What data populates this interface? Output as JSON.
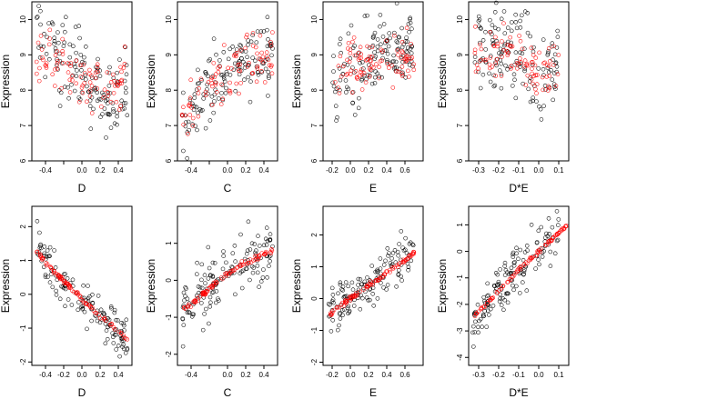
{
  "colors": {
    "observed": "#000000",
    "fitted": "#ff0000"
  },
  "chart_data": [
    {
      "type": "scatter",
      "xlabel": "D",
      "ylabel": "Expression",
      "xlim": [
        -0.55,
        0.55
      ],
      "ylim": [
        6,
        10.5
      ],
      "xticks": [
        -0.4,
        -0.2,
        0.0,
        0.2,
        0.4
      ],
      "xtick_labels": [
        "-0.4",
        "",
        "0.0",
        "0.2",
        "0.4"
      ],
      "yticks": [
        6,
        7,
        8,
        9,
        10
      ],
      "ytick_labels": [
        "6",
        "7",
        "8",
        "9",
        "10"
      ],
      "series": [
        {
          "values": [
            [
              -0.5,
              9.6
            ],
            [
              -0.45,
              9.4
            ],
            [
              -0.4,
              9.2
            ],
            [
              -0.35,
              9.1
            ],
            [
              -0.3,
              9.0
            ],
            [
              -0.2,
              8.8
            ],
            [
              -0.1,
              8.6
            ],
            [
              0.0,
              8.4
            ],
            [
              0.05,
              8.2
            ],
            [
              0.1,
              8.1
            ],
            [
              0.2,
              8.0
            ],
            [
              0.3,
              7.9
            ],
            [
              0.4,
              7.9
            ],
            [
              0.5,
              7.9
            ]
          ],
          "spread": 0.9
        },
        {
          "values": [
            [
              -0.5,
              9.1
            ],
            [
              -0.4,
              9.0
            ],
            [
              -0.3,
              8.8
            ],
            [
              -0.2,
              8.6
            ],
            [
              -0.1,
              8.5
            ],
            [
              0.0,
              8.3
            ],
            [
              0.1,
              8.2
            ],
            [
              0.2,
              8.2
            ],
            [
              0.3,
              8.2
            ],
            [
              0.4,
              8.3
            ],
            [
              0.5,
              8.5
            ]
          ],
          "spread": 0.6
        }
      ]
    },
    {
      "type": "scatter",
      "xlabel": "C",
      "ylabel": "Expression",
      "xlim": [
        -0.55,
        0.55
      ],
      "ylim": [
        6,
        10.5
      ],
      "xticks": [
        -0.4,
        -0.2,
        0.0,
        0.2,
        0.4
      ],
      "xtick_labels": [
        "-0.4",
        "",
        "0.0",
        "0.2",
        "0.4"
      ],
      "yticks": [
        6,
        7,
        8,
        9,
        10
      ],
      "ytick_labels": [
        "6",
        "7",
        "8",
        "9",
        "10"
      ],
      "series": [
        {
          "values": [
            [
              -0.5,
              7.0
            ],
            [
              -0.4,
              7.4
            ],
            [
              -0.3,
              7.8
            ],
            [
              -0.2,
              8.0
            ],
            [
              -0.1,
              8.2
            ],
            [
              0.0,
              8.5
            ],
            [
              0.1,
              8.7
            ],
            [
              0.2,
              8.9
            ],
            [
              0.3,
              9.0
            ],
            [
              0.4,
              9.1
            ],
            [
              0.5,
              9.2
            ]
          ],
          "spread": 0.8
        },
        {
          "values": [
            [
              -0.5,
              7.1
            ],
            [
              -0.4,
              7.5
            ],
            [
              -0.3,
              7.8
            ],
            [
              -0.2,
              8.1
            ],
            [
              -0.1,
              8.3
            ],
            [
              0.0,
              8.5
            ],
            [
              0.1,
              8.7
            ],
            [
              0.2,
              8.8
            ],
            [
              0.3,
              8.9
            ],
            [
              0.4,
              9.0
            ],
            [
              0.5,
              9.0
            ]
          ],
          "spread": 0.6
        }
      ]
    },
    {
      "type": "scatter",
      "xlabel": "E",
      "ylabel": "Expression",
      "xlim": [
        -0.3,
        0.8
      ],
      "ylim": [
        6,
        10.5
      ],
      "xticks": [
        -0.2,
        0.0,
        0.2,
        0.4,
        0.6
      ],
      "xtick_labels": [
        "-0.2",
        "0.0",
        "0.2",
        "0.4",
        "0.6"
      ],
      "yticks": [
        6,
        7,
        8,
        9,
        10
      ],
      "ytick_labels": [
        "6",
        "7",
        "8",
        "9",
        "10"
      ],
      "series": [
        {
          "values": [
            [
              -0.2,
              8.0
            ],
            [
              -0.17,
              8.2
            ],
            [
              -0.15,
              8.0
            ],
            [
              -0.1,
              8.3
            ],
            [
              0.0,
              8.4
            ],
            [
              0.1,
              8.6
            ],
            [
              0.2,
              8.7
            ],
            [
              0.3,
              8.9
            ],
            [
              0.4,
              9.0
            ],
            [
              0.5,
              9.1
            ],
            [
              0.6,
              9.2
            ],
            [
              0.7,
              9.3
            ]
          ],
          "spread": 0.9
        },
        {
          "values": [
            [
              -0.17,
              8.0
            ],
            [
              -0.15,
              8.4
            ],
            [
              -0.1,
              8.4
            ],
            [
              0.0,
              8.6
            ],
            [
              0.1,
              8.7
            ],
            [
              0.2,
              8.8
            ],
            [
              0.3,
              8.9
            ],
            [
              0.4,
              8.9
            ],
            [
              0.5,
              9.0
            ],
            [
              0.6,
              9.0
            ],
            [
              0.7,
              9.1
            ]
          ],
          "spread": 0.6
        }
      ]
    },
    {
      "type": "scatter",
      "xlabel": "D*E",
      "ylabel": "Expression",
      "xlim": [
        -0.35,
        0.15
      ],
      "ylim": [
        6,
        10.5
      ],
      "xticks": [
        -0.3,
        -0.2,
        -0.1,
        0.0,
        0.1
      ],
      "xtick_labels": [
        "-0.3",
        "-0.2",
        "-0.1",
        "0.0",
        "0.1"
      ],
      "yticks": [
        6,
        7,
        8,
        9,
        10
      ],
      "ytick_labels": [
        "6",
        "7",
        "8",
        "9",
        "10"
      ],
      "series": [
        {
          "values": [
            [
              -0.32,
              9.3
            ],
            [
              -0.25,
              9.2
            ],
            [
              -0.15,
              9.2
            ],
            [
              -0.05,
              9.0
            ],
            [
              -0.02,
              8.3
            ],
            [
              -0.01,
              8.1
            ],
            [
              0.0,
              8.2
            ],
            [
              0.01,
              8.3
            ],
            [
              0.02,
              8.4
            ],
            [
              0.05,
              8.6
            ],
            [
              0.1,
              8.6
            ]
          ],
          "spread": 0.9
        },
        {
          "values": [
            [
              -0.32,
              9.1
            ],
            [
              -0.25,
              9.1
            ],
            [
              -0.15,
              9.0
            ],
            [
              -0.05,
              8.9
            ],
            [
              -0.02,
              8.5
            ],
            [
              0.0,
              8.4
            ],
            [
              0.02,
              8.5
            ],
            [
              0.05,
              8.6
            ],
            [
              0.1,
              8.7
            ]
          ],
          "spread": 0.6
        }
      ]
    },
    {
      "type": "scatter",
      "xlabel": "D",
      "ylabel": "Expression",
      "xlim": [
        -0.55,
        0.55
      ],
      "ylim": [
        -2.1,
        2.6
      ],
      "xticks": [
        -0.4,
        -0.2,
        0.0,
        0.2,
        0.4
      ],
      "xtick_labels": [
        "-0.4",
        "-0.2",
        "0.0",
        "0.2",
        "0.4"
      ],
      "yticks": [
        -2,
        -1,
        0,
        1,
        2
      ],
      "ytick_labels": [
        "-2",
        "-1",
        "0",
        "1",
        "2"
      ],
      "series": [
        {
          "values": [
            [
              -0.5,
              1.4
            ],
            [
              -0.4,
              1.0
            ],
            [
              -0.3,
              0.6
            ],
            [
              -0.2,
              0.3
            ],
            [
              -0.1,
              0.1
            ],
            [
              0.0,
              -0.2
            ],
            [
              0.1,
              -0.4
            ],
            [
              0.2,
              -0.6
            ],
            [
              0.3,
              -0.8
            ],
            [
              0.4,
              -1.1
            ],
            [
              0.5,
              -1.3
            ]
          ],
          "spread": 0.55
        },
        {
          "values": [
            [
              -0.5,
              1.3
            ],
            [
              -0.4,
              0.95
            ],
            [
              -0.3,
              0.65
            ],
            [
              -0.2,
              0.4
            ],
            [
              -0.1,
              0.15
            ],
            [
              0.0,
              -0.15
            ],
            [
              0.1,
              -0.4
            ],
            [
              0.2,
              -0.65
            ],
            [
              0.3,
              -0.85
            ],
            [
              0.4,
              -1.1
            ],
            [
              0.5,
              -1.35
            ]
          ],
          "spread": 0.05
        }
      ]
    },
    {
      "type": "scatter",
      "xlabel": "C",
      "ylabel": "Expression",
      "xlim": [
        -0.55,
        0.55
      ],
      "ylim": [
        -2.3,
        2.0
      ],
      "xticks": [
        -0.4,
        -0.2,
        0.0,
        0.2,
        0.4
      ],
      "xtick_labels": [
        "-0.4",
        "",
        "0.0",
        "0.2",
        "0.4"
      ],
      "yticks": [
        -2,
        -1,
        0,
        1
      ],
      "ytick_labels": [
        "-2",
        "-1",
        "0",
        "1"
      ],
      "series": [
        {
          "values": [
            [
              -0.5,
              -0.9
            ],
            [
              -0.4,
              -0.7
            ],
            [
              -0.3,
              -0.4
            ],
            [
              -0.2,
              -0.2
            ],
            [
              -0.1,
              0.0
            ],
            [
              0.0,
              0.2
            ],
            [
              0.1,
              0.4
            ],
            [
              0.2,
              0.5
            ],
            [
              0.3,
              0.6
            ],
            [
              0.4,
              0.7
            ],
            [
              0.5,
              0.8
            ]
          ],
          "spread": 0.6
        },
        {
          "values": [
            [
              -0.5,
              -0.8
            ],
            [
              -0.4,
              -0.65
            ],
            [
              -0.3,
              -0.45
            ],
            [
              -0.2,
              -0.2
            ],
            [
              -0.1,
              0.0
            ],
            [
              0.0,
              0.2
            ],
            [
              0.1,
              0.35
            ],
            [
              0.2,
              0.5
            ],
            [
              0.3,
              0.6
            ],
            [
              0.4,
              0.7
            ],
            [
              0.5,
              0.8
            ]
          ],
          "spread": 0.05
        }
      ]
    },
    {
      "type": "scatter",
      "xlabel": "E",
      "ylabel": "Expression",
      "xlim": [
        -0.3,
        0.8
      ],
      "ylim": [
        -2.1,
        2.9
      ],
      "xticks": [
        -0.2,
        0.0,
        0.2,
        0.4,
        0.6
      ],
      "xtick_labels": [
        "-0.2",
        "0.0",
        "0.2",
        "0.4",
        "0.6"
      ],
      "yticks": [
        -2,
        -1,
        0,
        1,
        2
      ],
      "ytick_labels": [
        "-2",
        "-1",
        "0",
        "1",
        "2"
      ],
      "series": [
        {
          "values": [
            [
              -0.25,
              -0.6
            ],
            [
              -0.2,
              -0.4
            ],
            [
              -0.17,
              -0.4
            ],
            [
              -0.1,
              -0.2
            ],
            [
              0.0,
              0.0
            ],
            [
              0.1,
              0.2
            ],
            [
              0.2,
              0.4
            ],
            [
              0.3,
              0.6
            ],
            [
              0.4,
              0.8
            ],
            [
              0.5,
              1.0
            ],
            [
              0.6,
              1.3
            ],
            [
              0.7,
              1.6
            ]
          ],
          "spread": 0.6
        },
        {
          "values": [
            [
              -0.25,
              -0.6
            ],
            [
              -0.2,
              -0.45
            ],
            [
              -0.1,
              -0.2
            ],
            [
              0.0,
              0.0
            ],
            [
              0.1,
              0.2
            ],
            [
              0.2,
              0.4
            ],
            [
              0.3,
              0.6
            ],
            [
              0.4,
              0.8
            ],
            [
              0.5,
              1.0
            ],
            [
              0.6,
              1.2
            ],
            [
              0.7,
              1.45
            ]
          ],
          "spread": 0.05
        }
      ]
    },
    {
      "type": "scatter",
      "xlabel": "D*E",
      "ylabel": "Expression",
      "xlim": [
        -0.35,
        0.15
      ],
      "ylim": [
        -4.3,
        1.7
      ],
      "xticks": [
        -0.3,
        -0.2,
        -0.1,
        0.0,
        0.1
      ],
      "xtick_labels": [
        "-0.3",
        "-0.2",
        "-0.1",
        "0.0",
        "0.1"
      ],
      "yticks": [
        -4,
        -3,
        -2,
        -1,
        0,
        1
      ],
      "ytick_labels": [
        "-4",
        "-3",
        "-2",
        "-1",
        "0",
        "1"
      ],
      "series": [
        {
          "values": [
            [
              -0.33,
              -3.0
            ],
            [
              -0.3,
              -2.4
            ],
            [
              -0.25,
              -1.9
            ],
            [
              -0.2,
              -1.4
            ],
            [
              -0.15,
              -1.0
            ],
            [
              -0.1,
              -0.7
            ],
            [
              -0.05,
              -0.4
            ],
            [
              -0.02,
              -0.1
            ],
            [
              0.0,
              0.1
            ],
            [
              0.02,
              0.3
            ],
            [
              0.05,
              0.5
            ],
            [
              0.1,
              0.8
            ]
          ],
          "spread": 0.7
        },
        {
          "values": [
            [
              -0.32,
              -2.4
            ],
            [
              -0.25,
              -1.9
            ],
            [
              -0.2,
              -1.5
            ],
            [
              -0.15,
              -1.1
            ],
            [
              -0.1,
              -0.7
            ],
            [
              -0.05,
              -0.35
            ],
            [
              0.0,
              0.0
            ],
            [
              0.05,
              0.35
            ],
            [
              0.1,
              0.7
            ],
            [
              0.14,
              1.0
            ]
          ],
          "spread": 0.05
        }
      ]
    }
  ]
}
